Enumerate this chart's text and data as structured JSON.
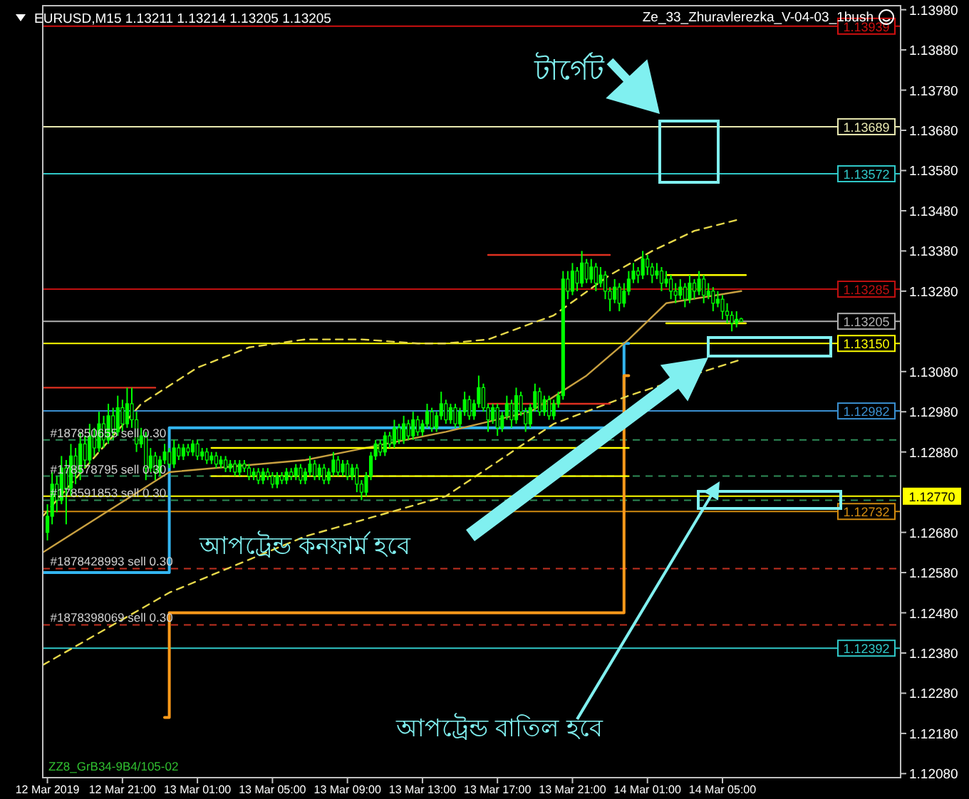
{
  "chart_data": {
    "type": "candlestick",
    "title": "EURUSD,M15  1.13211 1.13214 1.13205 1.13205",
    "subtitle": "Ze_33_Zhuravlerezka_V-04-03_1bush",
    "annotations": [
      "টার্গেট",
      "আপট্রেন্ড কনফার্ম হবে",
      "আপট্রেন্ড বাতিল হবে",
      {
        "text": "#187850655 sell 0.30",
        "x": "2019-03-12T17:00",
        "y": 1.1291
      },
      {
        "text": "#178578795 sell 0.30",
        "x": "2019-03-12T17:00",
        "y": 1.1282
      },
      {
        "text": "#178591853 sell 0.30",
        "x": "2019-03-12T17:00",
        "y": 1.1276
      },
      {
        "text": "#1878428993 sell 0.30",
        "x": "2019-03-12T17:00",
        "y": 1.1259
      },
      {
        "text": "#1878398069 sell 0.30",
        "x": "2019-03-12T17:00",
        "y": 1.1245
      },
      "ZZ8_GrB34-9B4/105-02"
    ],
    "xlim": [
      "2019-03-12T16:45",
      "2019-03-14T14:30"
    ],
    "ylim": [
      1.1207,
      1.1399
    ],
    "xticks": [
      {
        "value": "2019-03-12T17:00",
        "label": "12 Mar 2019"
      },
      {
        "value": "2019-03-12T21:00",
        "label": "12 Mar 21:00"
      },
      {
        "value": "2019-03-13T01:00",
        "label": "13 Mar 01:00"
      },
      {
        "value": "2019-03-13T05:00",
        "label": "13 Mar 05:00"
      },
      {
        "value": "2019-03-13T09:00",
        "label": "13 Mar 09:00"
      },
      {
        "value": "2019-03-13T13:00",
        "label": "13 Mar 13:00"
      },
      {
        "value": "2019-03-13T17:00",
        "label": "13 Mar 17:00"
      },
      {
        "value": "2019-03-13T21:00",
        "label": "13 Mar 21:00"
      },
      {
        "value": "2019-03-14T01:00",
        "label": "14 Mar 01:00"
      },
      {
        "value": "2019-03-14T05:00",
        "label": "14 Mar 05:00"
      }
    ],
    "yticks": [
      {
        "value": 1.1208,
        "label": "1.12080"
      },
      {
        "value": 1.1218,
        "label": "1.12180"
      },
      {
        "value": 1.1228,
        "label": "1.12280"
      },
      {
        "value": 1.1238,
        "label": "1.12380"
      },
      {
        "value": 1.1248,
        "label": "1.12480"
      },
      {
        "value": 1.1258,
        "label": "1.12580"
      },
      {
        "value": 1.1268,
        "label": "1.12680"
      },
      {
        "value": 1.1288,
        "label": "1.12880"
      },
      {
        "value": 1.1298,
        "label": "1.12980"
      },
      {
        "value": 1.1308,
        "label": "1.13080"
      },
      {
        "value": 1.1328,
        "label": "1.13280"
      },
      {
        "value": 1.1338,
        "label": "1.13380"
      },
      {
        "value": 1.1348,
        "label": "1.13480"
      },
      {
        "value": 1.1358,
        "label": "1.13580"
      },
      {
        "value": 1.1368,
        "label": "1.13680"
      },
      {
        "value": 1.1378,
        "label": "1.13780"
      },
      {
        "value": 1.1388,
        "label": "1.13880"
      },
      {
        "value": 1.1398,
        "label": "1.13980"
      }
    ],
    "color": "#00ff00",
    "x": [
      "2019-03-12T17:00",
      "2019-03-12T17:15",
      "2019-03-12T17:30",
      "2019-03-12T17:45",
      "2019-03-12T18:00",
      "2019-03-12T18:15",
      "2019-03-12T18:30",
      "2019-03-12T18:45",
      "2019-03-12T19:00",
      "2019-03-12T19:15",
      "2019-03-12T19:30",
      "2019-03-12T19:45",
      "2019-03-12T20:00",
      "2019-03-12T20:15",
      "2019-03-12T20:30",
      "2019-03-12T20:45",
      "2019-03-12T21:00",
      "2019-03-12T21:15",
      "2019-03-12T21:30",
      "2019-03-12T21:45",
      "2019-03-12T22:00",
      "2019-03-12T22:15",
      "2019-03-12T22:30",
      "2019-03-12T22:45",
      "2019-03-12T23:00",
      "2019-03-12T23:15",
      "2019-03-12T23:30",
      "2019-03-12T23:45",
      "2019-03-13T00:00",
      "2019-03-13T00:15",
      "2019-03-13T00:30",
      "2019-03-13T00:45",
      "2019-03-13T01:00",
      "2019-03-13T01:15",
      "2019-03-13T01:30",
      "2019-03-13T01:45",
      "2019-03-13T02:00",
      "2019-03-13T02:15",
      "2019-03-13T02:30",
      "2019-03-13T02:45",
      "2019-03-13T03:00",
      "2019-03-13T03:15",
      "2019-03-13T03:30",
      "2019-03-13T03:45",
      "2019-03-13T04:00",
      "2019-03-13T04:15",
      "2019-03-13T04:30",
      "2019-03-13T04:45",
      "2019-03-13T05:00",
      "2019-03-13T05:15",
      "2019-03-13T05:30",
      "2019-03-13T05:45",
      "2019-03-13T06:00",
      "2019-03-13T06:15",
      "2019-03-13T06:30",
      "2019-03-13T06:45",
      "2019-03-13T07:00",
      "2019-03-13T07:15",
      "2019-03-13T07:30",
      "2019-03-13T07:45",
      "2019-03-13T08:00",
      "2019-03-13T08:15",
      "2019-03-13T08:30",
      "2019-03-13T08:45",
      "2019-03-13T09:00",
      "2019-03-13T09:15",
      "2019-03-13T09:30",
      "2019-03-13T09:45",
      "2019-03-13T10:00",
      "2019-03-13T10:15",
      "2019-03-13T10:30",
      "2019-03-13T10:45",
      "2019-03-13T11:00",
      "2019-03-13T11:15",
      "2019-03-13T11:30",
      "2019-03-13T11:45",
      "2019-03-13T12:00",
      "2019-03-13T12:15",
      "2019-03-13T12:30",
      "2019-03-13T12:45",
      "2019-03-13T13:00",
      "2019-03-13T13:15",
      "2019-03-13T13:30",
      "2019-03-13T13:45",
      "2019-03-13T14:00",
      "2019-03-13T14:15",
      "2019-03-13T14:30",
      "2019-03-13T14:45",
      "2019-03-13T15:00",
      "2019-03-13T15:15",
      "2019-03-13T15:30",
      "2019-03-13T15:45",
      "2019-03-13T16:00",
      "2019-03-13T16:15",
      "2019-03-13T16:30",
      "2019-03-13T16:45",
      "2019-03-13T17:00",
      "2019-03-13T17:15",
      "2019-03-13T17:30",
      "2019-03-13T17:45",
      "2019-03-13T18:00",
      "2019-03-13T18:15",
      "2019-03-13T18:30",
      "2019-03-13T18:45",
      "2019-03-13T19:00",
      "2019-03-13T19:15",
      "2019-03-13T19:30",
      "2019-03-13T19:45",
      "2019-03-13T20:00",
      "2019-03-13T20:15",
      "2019-03-13T20:30",
      "2019-03-13T20:45",
      "2019-03-13T21:00",
      "2019-03-13T21:15",
      "2019-03-13T21:30",
      "2019-03-13T21:45",
      "2019-03-13T22:00",
      "2019-03-13T22:15",
      "2019-03-13T22:30",
      "2019-03-13T22:45",
      "2019-03-13T23:00",
      "2019-03-13T23:15",
      "2019-03-13T23:30",
      "2019-03-13T23:45",
      "2019-03-14T00:00",
      "2019-03-14T00:15",
      "2019-03-14T00:30",
      "2019-03-14T00:45",
      "2019-03-14T01:00",
      "2019-03-14T01:15",
      "2019-03-14T01:30",
      "2019-03-14T01:45",
      "2019-03-14T02:00",
      "2019-03-14T02:15",
      "2019-03-14T02:30",
      "2019-03-14T02:45",
      "2019-03-14T03:00",
      "2019-03-14T03:15",
      "2019-03-14T03:30",
      "2019-03-14T03:45",
      "2019-03-14T04:00",
      "2019-03-14T04:15",
      "2019-03-14T04:30",
      "2019-03-14T04:45",
      "2019-03-14T05:00",
      "2019-03-14T05:15",
      "2019-03-14T05:30",
      "2019-03-14T05:45",
      "2019-03-14T06:00"
    ],
    "ohlc": [
      [
        1.1268,
        1.1275,
        1.1266,
        1.1272
      ],
      [
        1.1272,
        1.1283,
        1.127,
        1.128
      ],
      [
        1.128,
        1.1282,
        1.1273,
        1.1276
      ],
      [
        1.1276,
        1.1287,
        1.1275,
        1.1284
      ],
      [
        1.1284,
        1.1286,
        1.127,
        1.1279
      ],
      [
        1.1279,
        1.129,
        1.1277,
        1.1287
      ],
      [
        1.1287,
        1.1289,
        1.128,
        1.1283
      ],
      [
        1.1283,
        1.1293,
        1.1281,
        1.129
      ],
      [
        1.129,
        1.1292,
        1.1284,
        1.1286
      ],
      [
        1.1286,
        1.1295,
        1.1285,
        1.1292
      ],
      [
        1.1292,
        1.1294,
        1.1287,
        1.1289
      ],
      [
        1.1289,
        1.1298,
        1.1288,
        1.1295
      ],
      [
        1.1295,
        1.1297,
        1.1289,
        1.1291
      ],
      [
        1.1291,
        1.13,
        1.129,
        1.1297
      ],
      [
        1.1297,
        1.1299,
        1.1291,
        1.1293
      ],
      [
        1.1293,
        1.1302,
        1.1292,
        1.1299
      ],
      [
        1.1299,
        1.1301,
        1.1293,
        1.1295
      ],
      [
        1.1295,
        1.1304,
        1.1294,
        1.13
      ],
      [
        1.13,
        1.1304,
        1.1294,
        1.1296
      ],
      [
        1.1296,
        1.1298,
        1.1288,
        1.129
      ],
      [
        1.129,
        1.1294,
        1.1289,
        1.1292
      ],
      [
        1.1292,
        1.1293,
        1.1281,
        1.1284
      ],
      [
        1.1284,
        1.1289,
        1.1283,
        1.1287
      ],
      [
        1.1287,
        1.1288,
        1.1281,
        1.1283
      ],
      [
        1.1283,
        1.1287,
        1.1282,
        1.1286
      ],
      [
        1.1286,
        1.129,
        1.1285,
        1.1288
      ],
      [
        1.1288,
        1.1289,
        1.1284,
        1.1285
      ],
      [
        1.1285,
        1.1291,
        1.1284,
        1.1289
      ],
      [
        1.1289,
        1.129,
        1.1286,
        1.1287
      ],
      [
        1.1287,
        1.129,
        1.1286,
        1.1289
      ],
      [
        1.1289,
        1.129,
        1.1287,
        1.1288
      ],
      [
        1.1288,
        1.1291,
        1.1287,
        1.129
      ],
      [
        1.129,
        1.1291,
        1.1286,
        1.1287
      ],
      [
        1.1287,
        1.1289,
        1.1286,
        1.1288
      ],
      [
        1.1288,
        1.1289,
        1.1285,
        1.1286
      ],
      [
        1.1286,
        1.1288,
        1.1285,
        1.1287
      ],
      [
        1.1287,
        1.1288,
        1.1284,
        1.1285
      ],
      [
        1.1285,
        1.1287,
        1.1284,
        1.1286
      ],
      [
        1.1286,
        1.1287,
        1.1283,
        1.1284
      ],
      [
        1.1284,
        1.1286,
        1.1283,
        1.1285
      ],
      [
        1.1285,
        1.1286,
        1.1282,
        1.1283
      ],
      [
        1.1283,
        1.1286,
        1.1282,
        1.1285
      ],
      [
        1.1285,
        1.1286,
        1.1283,
        1.1284
      ],
      [
        1.1284,
        1.1285,
        1.1281,
        1.1282
      ],
      [
        1.1282,
        1.1284,
        1.1281,
        1.1283
      ],
      [
        1.1283,
        1.1284,
        1.128,
        1.1281
      ],
      [
        1.1281,
        1.1284,
        1.128,
        1.1283
      ],
      [
        1.1283,
        1.1284,
        1.1281,
        1.1282
      ],
      [
        1.1282,
        1.1283,
        1.1279,
        1.128
      ],
      [
        1.128,
        1.1283,
        1.1279,
        1.1282
      ],
      [
        1.1282,
        1.1283,
        1.128,
        1.1281
      ],
      [
        1.1281,
        1.1284,
        1.128,
        1.1283
      ],
      [
        1.1283,
        1.1284,
        1.1281,
        1.1282
      ],
      [
        1.1282,
        1.1285,
        1.1281,
        1.1284
      ],
      [
        1.1284,
        1.1285,
        1.128,
        1.1281
      ],
      [
        1.1281,
        1.1284,
        1.128,
        1.1283
      ],
      [
        1.1283,
        1.1287,
        1.1282,
        1.1285
      ],
      [
        1.1285,
        1.1286,
        1.1281,
        1.1282
      ],
      [
        1.1282,
        1.1285,
        1.1281,
        1.1284
      ],
      [
        1.1284,
        1.1285,
        1.128,
        1.1281
      ],
      [
        1.1281,
        1.1284,
        1.128,
        1.1283
      ],
      [
        1.1283,
        1.1288,
        1.1282,
        1.1286
      ],
      [
        1.1286,
        1.1287,
        1.1282,
        1.1283
      ],
      [
        1.1283,
        1.1286,
        1.1282,
        1.1285
      ],
      [
        1.1285,
        1.1286,
        1.1281,
        1.1282
      ],
      [
        1.1282,
        1.1285,
        1.1281,
        1.1284
      ],
      [
        1.1284,
        1.1285,
        1.1278,
        1.128
      ],
      [
        1.128,
        1.1281,
        1.1276,
        1.1278
      ],
      [
        1.1278,
        1.1283,
        1.1277,
        1.1282
      ],
      [
        1.1282,
        1.1288,
        1.1281,
        1.1287
      ],
      [
        1.1287,
        1.1291,
        1.1286,
        1.129
      ],
      [
        1.129,
        1.1291,
        1.1287,
        1.1288
      ],
      [
        1.1288,
        1.1293,
        1.1287,
        1.1292
      ],
      [
        1.1292,
        1.1293,
        1.1289,
        1.129
      ],
      [
        1.129,
        1.1296,
        1.1289,
        1.1294
      ],
      [
        1.1294,
        1.1295,
        1.129,
        1.1291
      ],
      [
        1.1291,
        1.1297,
        1.129,
        1.1295
      ],
      [
        1.1295,
        1.1296,
        1.1291,
        1.1292
      ],
      [
        1.1292,
        1.1298,
        1.1291,
        1.1296
      ],
      [
        1.1296,
        1.1297,
        1.1292,
        1.1293
      ],
      [
        1.1293,
        1.1296,
        1.1292,
        1.1295
      ],
      [
        1.1295,
        1.13,
        1.1294,
        1.1298
      ],
      [
        1.1298,
        1.1299,
        1.1293,
        1.1294
      ],
      [
        1.1294,
        1.1298,
        1.1293,
        1.1297
      ],
      [
        1.1297,
        1.1303,
        1.1296,
        1.13
      ],
      [
        1.13,
        1.1301,
        1.1295,
        1.1296
      ],
      [
        1.1296,
        1.13,
        1.1295,
        1.1299
      ],
      [
        1.1299,
        1.13,
        1.1294,
        1.1295
      ],
      [
        1.1295,
        1.1299,
        1.1294,
        1.1298
      ],
      [
        1.1298,
        1.1303,
        1.1297,
        1.1301
      ],
      [
        1.1301,
        1.1302,
        1.1296,
        1.1297
      ],
      [
        1.1297,
        1.1301,
        1.1296,
        1.13
      ],
      [
        1.13,
        1.1307,
        1.1299,
        1.1304
      ],
      [
        1.1304,
        1.1305,
        1.1298,
        1.1299
      ],
      [
        1.1299,
        1.13,
        1.1293,
        1.1296
      ],
      [
        1.1296,
        1.13,
        1.1295,
        1.1299
      ],
      [
        1.1299,
        1.13,
        1.1292,
        1.1294
      ],
      [
        1.1294,
        1.1298,
        1.1293,
        1.1297
      ],
      [
        1.1297,
        1.1302,
        1.1296,
        1.13
      ],
      [
        1.13,
        1.1301,
        1.1294,
        1.1296
      ],
      [
        1.1296,
        1.1304,
        1.1295,
        1.1302
      ],
      [
        1.1302,
        1.1303,
        1.1297,
        1.1298
      ],
      [
        1.1298,
        1.1299,
        1.1293,
        1.1295
      ],
      [
        1.1295,
        1.13,
        1.1294,
        1.1299
      ],
      [
        1.1299,
        1.1305,
        1.1298,
        1.1303
      ],
      [
        1.1303,
        1.1304,
        1.1297,
        1.1298
      ],
      [
        1.1298,
        1.1302,
        1.1297,
        1.1301
      ],
      [
        1.1301,
        1.1302,
        1.1296,
        1.1297
      ],
      [
        1.1297,
        1.1301,
        1.1296,
        1.13
      ],
      [
        1.13,
        1.1303,
        1.1299,
        1.1302
      ],
      [
        1.1302,
        1.1333,
        1.1301,
        1.1331
      ],
      [
        1.1331,
        1.1333,
        1.1326,
        1.1328
      ],
      [
        1.1328,
        1.1335,
        1.1327,
        1.1333
      ],
      [
        1.1333,
        1.1334,
        1.1328,
        1.133
      ],
      [
        1.133,
        1.1338,
        1.1329,
        1.1335
      ],
      [
        1.1335,
        1.1336,
        1.133,
        1.1331
      ],
      [
        1.1331,
        1.1336,
        1.133,
        1.1334
      ],
      [
        1.1334,
        1.1335,
        1.1328,
        1.133
      ],
      [
        1.133,
        1.1334,
        1.1329,
        1.1332
      ],
      [
        1.1332,
        1.1333,
        1.1326,
        1.1328
      ],
      [
        1.1328,
        1.1329,
        1.1323,
        1.1326
      ],
      [
        1.1326,
        1.1331,
        1.1325,
        1.1329
      ],
      [
        1.1329,
        1.133,
        1.1323,
        1.1325
      ],
      [
        1.1325,
        1.133,
        1.1324,
        1.1328
      ],
      [
        1.1328,
        1.1333,
        1.1327,
        1.1331
      ],
      [
        1.1331,
        1.1335,
        1.133,
        1.1333
      ],
      [
        1.1333,
        1.1334,
        1.133,
        1.1332
      ],
      [
        1.1332,
        1.1338,
        1.1331,
        1.1336
      ],
      [
        1.1336,
        1.1337,
        1.1332,
        1.1334
      ],
      [
        1.1334,
        1.1335,
        1.133,
        1.1332
      ],
      [
        1.1332,
        1.1335,
        1.1331,
        1.1333
      ],
      [
        1.1333,
        1.1334,
        1.1328,
        1.133
      ],
      [
        1.133,
        1.1333,
        1.1329,
        1.1331
      ],
      [
        1.1331,
        1.1332,
        1.1326,
        1.1328
      ],
      [
        1.1328,
        1.133,
        1.1325,
        1.1327
      ],
      [
        1.1327,
        1.1331,
        1.1326,
        1.1329
      ],
      [
        1.1329,
        1.133,
        1.1324,
        1.1326
      ],
      [
        1.1326,
        1.1332,
        1.1325,
        1.133
      ],
      [
        1.133,
        1.1331,
        1.1326,
        1.1328
      ],
      [
        1.1328,
        1.1333,
        1.1327,
        1.1331
      ],
      [
        1.1331,
        1.1332,
        1.1325,
        1.1327
      ],
      [
        1.1327,
        1.133,
        1.1326,
        1.1328
      ],
      [
        1.1328,
        1.1329,
        1.1323,
        1.1325
      ],
      [
        1.1325,
        1.1328,
        1.1324,
        1.1326
      ],
      [
        1.1326,
        1.1327,
        1.1321,
        1.1323
      ],
      [
        1.1323,
        1.1325,
        1.132,
        1.1322
      ],
      [
        1.1322,
        1.1323,
        1.1318,
        1.132
      ],
      [
        1.132,
        1.1323,
        1.1319,
        1.1321
      ],
      [
        1.13211,
        1.13214,
        1.13205,
        1.13205
      ]
    ],
    "series": [
      {
        "type": "step",
        "color": "#33b5f0",
        "x": [
          "2019-03-12T16:45",
          "2019-03-12T23:30",
          "2019-03-13T23:45",
          "2019-03-14T00:00"
        ],
        "values": [
          1.1258,
          1.1294,
          1.1315,
          1.1315
        ]
      },
      {
        "type": "step",
        "color": "#ff9a1a",
        "x": [
          "2019-03-12T23:15",
          "2019-03-12T23:30",
          "2019-03-13T23:45",
          "2019-03-14T00:00"
        ],
        "values": [
          1.1222,
          1.1248,
          1.1307,
          1.1307
        ]
      },
      {
        "type": "line",
        "color": "#e6d84a",
        "line_style": "dashed",
        "x": [
          "2019-03-12T16:45",
          "2019-03-12T19:00",
          "2019-03-12T22:00",
          "2019-03-13T01:00",
          "2019-03-13T03:45",
          "2019-03-13T06:45",
          "2019-03-13T09:45",
          "2019-03-13T12:45",
          "2019-03-13T14:15",
          "2019-03-13T16:30",
          "2019-03-13T20:00",
          "2019-03-13T23:00",
          "2019-03-14T01:15",
          "2019-03-14T03:30",
          "2019-03-14T06:00"
        ],
        "values": [
          1.1272,
          1.1284,
          1.13,
          1.1309,
          1.1314,
          1.1316,
          1.1316,
          1.1315,
          1.1315,
          1.1316,
          1.1322,
          1.1332,
          1.1338,
          1.1343,
          1.1346
        ]
      },
      {
        "type": "line",
        "color": "#c8a040",
        "x": [
          "2019-03-12T16:45",
          "2019-03-12T23:30",
          "2019-03-13T06:45",
          "2019-03-13T14:15",
          "2019-03-13T18:45",
          "2019-03-13T21:45",
          "2019-03-14T00:00",
          "2019-03-14T02:00",
          "2019-03-14T06:00"
        ],
        "values": [
          1.1263,
          1.1283,
          1.1286,
          1.1293,
          1.1298,
          1.1307,
          1.1316,
          1.1325,
          1.1328
        ]
      },
      {
        "type": "line",
        "color": "#e6d84a",
        "line_style": "dashed",
        "x": [
          "2019-03-12T16:45",
          "2019-03-12T23:30",
          "2019-03-13T06:45",
          "2019-03-13T14:15",
          "2019-03-13T20:00",
          "2019-03-14T00:00",
          "2019-03-14T06:00"
        ],
        "values": [
          1.1235,
          1.1253,
          1.1267,
          1.1277,
          1.1295,
          1.1302,
          1.1311
        ]
      },
      {
        "type": "line",
        "color": "#e03020",
        "x": [
          "2019-03-12T16:45",
          "2019-03-12T22:45"
        ],
        "values": [
          1.1304,
          1.1304
        ]
      },
      {
        "type": "line",
        "color": "#e03020",
        "x": [
          "2019-03-13T16:30",
          "2019-03-13T23:00"
        ],
        "values": [
          1.1337,
          1.1337
        ]
      },
      {
        "type": "line",
        "color": "#e03020",
        "x": [
          "2019-03-13T16:30",
          "2019-03-13T23:00"
        ],
        "values": [
          1.13,
          1.13
        ]
      },
      {
        "type": "line",
        "color": "#ffff00",
        "x": [
          "2019-03-13T01:45",
          "2019-03-14T00:00"
        ],
        "values": [
          1.1289,
          1.1289
        ]
      },
      {
        "type": "line",
        "color": "#ffff00",
        "x": [
          "2019-03-13T01:45",
          "2019-03-14T00:00"
        ],
        "values": [
          1.1282,
          1.1282
        ]
      },
      {
        "type": "line",
        "color": "#ffff00",
        "x": [
          "2019-03-14T02:00",
          "2019-03-14T06:15"
        ],
        "values": [
          1.1332,
          1.1332
        ]
      },
      {
        "type": "line",
        "color": "#ffff00",
        "x": [
          "2019-03-14T02:00",
          "2019-03-14T06:15"
        ],
        "values": [
          1.132,
          1.132
        ]
      }
    ],
    "ref_lines": [
      {
        "axis": "y",
        "value": 1.13939,
        "label": "1.13939",
        "color": "#d01010"
      },
      {
        "axis": "y",
        "value": 1.13689,
        "label": "1.13689",
        "color": "#e8e8b0"
      },
      {
        "axis": "y",
        "value": 1.13572,
        "label": "1.13572",
        "color": "#30c8c8"
      },
      {
        "axis": "y",
        "value": 1.13285,
        "label": "1.13285",
        "color": "#c01010"
      },
      {
        "axis": "y",
        "value": 1.13205,
        "label": "1.13205",
        "color": "#b0b0b0"
      },
      {
        "axis": "y",
        "value": 1.1315,
        "label": "1.13150",
        "color": "#ffff00"
      },
      {
        "axis": "y",
        "value": 1.12982,
        "label": "1.12982",
        "color": "#3a8fd0"
      },
      {
        "axis": "y",
        "value": 1.12732,
        "label": "1.12732",
        "color": "#d08a10"
      },
      {
        "axis": "y",
        "value": 1.1277,
        "label": "1.12770",
        "color": "#ffff00"
      },
      {
        "axis": "y",
        "value": 1.12392,
        "label": "1.12392",
        "color": "#30c8c8"
      },
      {
        "axis": "y",
        "value": 1.1291,
        "color": "#2e8b57",
        "line_style": "dashed"
      },
      {
        "axis": "y",
        "value": 1.1282,
        "color": "#2e8b57",
        "line_style": "dashed"
      },
      {
        "axis": "y",
        "value": 1.1276,
        "color": "#2e8b57",
        "line_style": "dashed"
      },
      {
        "axis": "y",
        "value": 1.1259,
        "color": "#c03020",
        "line_style": "dashed"
      },
      {
        "axis": "y",
        "value": 1.1245,
        "color": "#c03020",
        "line_style": "dashed"
      }
    ]
  }
}
